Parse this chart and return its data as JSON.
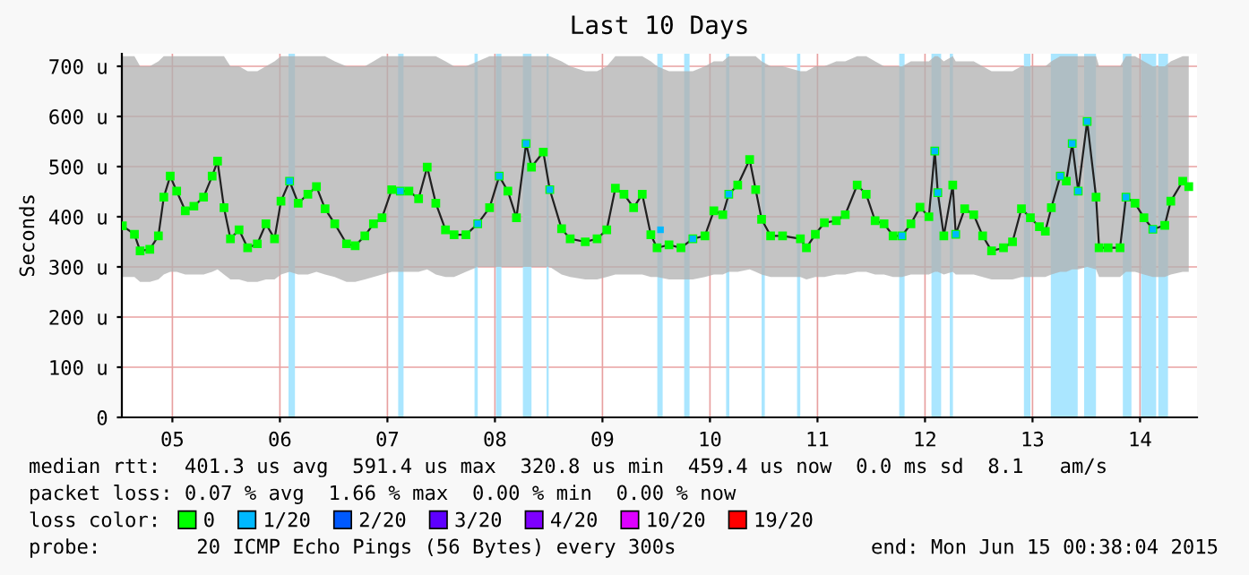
{
  "chart_data": {
    "type": "line",
    "title": "Last 10 Days",
    "ylabel": "Seconds",
    "xlim": [
      4.53,
      14.53
    ],
    "ylim": [
      0,
      725
    ],
    "xticks": [
      {
        "value": 5,
        "label": "05"
      },
      {
        "value": 6,
        "label": "06"
      },
      {
        "value": 7,
        "label": "07"
      },
      {
        "value": 8,
        "label": "08"
      },
      {
        "value": 9,
        "label": "09"
      },
      {
        "value": 10,
        "label": "10"
      },
      {
        "value": 11,
        "label": "11"
      },
      {
        "value": 12,
        "label": "12"
      },
      {
        "value": 13,
        "label": "13"
      },
      {
        "value": 14,
        "label": "14"
      }
    ],
    "yticks": [
      0,
      {
        "value": 100,
        "label": "100 u"
      },
      {
        "value": 200,
        "label": "200 u"
      },
      {
        "value": 300,
        "label": "300 u"
      },
      {
        "value": 400,
        "label": "400 u"
      },
      {
        "value": 500,
        "label": "500 u"
      },
      {
        "value": 600,
        "label": "600 u"
      },
      {
        "value": 700,
        "label": "700 u"
      }
    ],
    "grid": true,
    "legend": "bottom",
    "marker": "square",
    "line_style": "solid",
    "series": [
      {
        "name": "0",
        "color": "#00ff00",
        "x": [
          4.535,
          4.647,
          4.7,
          4.79,
          4.87,
          4.92,
          4.98,
          5.04,
          5.12,
          5.2,
          5.29,
          5.37,
          5.42,
          5.48,
          5.54,
          5.62,
          5.7,
          5.79,
          5.87,
          5.95,
          6.01,
          6.09,
          6.17,
          6.26,
          6.34,
          6.42,
          6.51,
          6.62,
          6.7,
          6.79,
          6.87,
          6.95,
          7.04,
          7.12,
          7.2,
          7.29,
          7.37,
          7.45,
          7.54,
          7.62,
          7.73,
          7.84,
          7.95,
          8.04,
          8.12,
          8.2,
          8.29,
          8.34,
          8.45,
          8.51,
          8.62,
          8.7,
          8.84,
          8.95,
          9.04,
          9.12,
          9.2,
          9.29,
          9.37,
          9.45,
          9.508,
          9.619,
          9.73,
          9.841,
          9.953,
          10.036,
          10.119,
          10.175,
          10.258,
          10.369,
          10.425,
          10.48,
          10.564,
          10.675,
          10.841,
          10.897,
          10.98,
          11.064,
          11.175,
          11.258,
          11.369,
          11.453,
          11.536,
          11.619,
          11.703,
          11.786,
          11.869,
          11.953,
          12.036,
          12.091,
          12.119,
          12.175,
          12.258,
          12.286,
          12.369,
          12.453,
          12.536,
          12.619,
          12.73,
          12.814,
          12.897,
          12.98,
          13.064,
          13.119,
          13.175,
          13.258,
          13.314,
          13.369,
          13.425,
          13.508,
          13.591,
          13.619,
          13.703,
          13.814,
          13.869,
          13.953,
          14.036,
          14.119,
          14.23,
          14.286,
          14.397,
          14.453
        ],
        "values": [
          382,
          365,
          332,
          335,
          362,
          439,
          481,
          451,
          412,
          421,
          439,
          481,
          511,
          418,
          356,
          374,
          338,
          346,
          386,
          356,
          431,
          471,
          427,
          445,
          460,
          416,
          386,
          346,
          342,
          362,
          386,
          398,
          454,
          451,
          451,
          436,
          499,
          427,
          374,
          364,
          364,
          386,
          418,
          481,
          451,
          398,
          546,
          499,
          529,
          454,
          376,
          356,
          350,
          356,
          374,
          457,
          445,
          418,
          445,
          364,
          338,
          344,
          338,
          356,
          362,
          412,
          404,
          445,
          463,
          514,
          454,
          395,
          362,
          362,
          356,
          338,
          365,
          388,
          392,
          404,
          463,
          445,
          392,
          386,
          362,
          362,
          386,
          419,
          400,
          531,
          448,
          362,
          463,
          365,
          416,
          404,
          362,
          332,
          338,
          350,
          416,
          398,
          380,
          371,
          418,
          481,
          471,
          546,
          451,
          590,
          439,
          338,
          338,
          338,
          439,
          427,
          398,
          375,
          383,
          431,
          471,
          460
        ],
        "lower": [
          280,
          280,
          270,
          270,
          275,
          285,
          290,
          290,
          285,
          285,
          285,
          290,
          295,
          285,
          275,
          275,
          270,
          270,
          275,
          275,
          285,
          290,
          285,
          285,
          290,
          285,
          280,
          270,
          270,
          275,
          280,
          285,
          290,
          290,
          290,
          290,
          295,
          285,
          280,
          280,
          290,
          300,
          300,
          300,
          300,
          300,
          300,
          300,
          300,
          300,
          285,
          280,
          275,
          275,
          280,
          285,
          285,
          285,
          285,
          280,
          280,
          275,
          275,
          275,
          280,
          285,
          285,
          290,
          290,
          295,
          290,
          285,
          280,
          280,
          280,
          275,
          280,
          280,
          285,
          285,
          290,
          290,
          285,
          285,
          280,
          280,
          285,
          285,
          285,
          290,
          290,
          285,
          290,
          285,
          285,
          285,
          280,
          275,
          275,
          275,
          280,
          280,
          280,
          280,
          285,
          290,
          290,
          295,
          295,
          300,
          295,
          280,
          280,
          280,
          290,
          290,
          285,
          280,
          280,
          285,
          290,
          290
        ],
        "upper": [
          720,
          720,
          700,
          700,
          710,
          720,
          720,
          720,
          720,
          720,
          720,
          720,
          720,
          720,
          700,
          700,
          690,
          690,
          700,
          710,
          720,
          720,
          720,
          720,
          720,
          720,
          710,
          700,
          700,
          700,
          710,
          720,
          720,
          720,
          720,
          720,
          720,
          720,
          710,
          700,
          700,
          710,
          720,
          720,
          720,
          720,
          720,
          720,
          720,
          720,
          710,
          700,
          690,
          690,
          700,
          720,
          720,
          720,
          720,
          710,
          700,
          690,
          690,
          690,
          700,
          710,
          710,
          720,
          720,
          720,
          720,
          710,
          700,
          700,
          690,
          690,
          700,
          700,
          710,
          710,
          720,
          720,
          710,
          700,
          700,
          700,
          710,
          710,
          710,
          720,
          720,
          710,
          720,
          710,
          710,
          710,
          700,
          690,
          690,
          690,
          700,
          700,
          700,
          700,
          710,
          720,
          720,
          720,
          720,
          720,
          720,
          700,
          700,
          700,
          720,
          720,
          710,
          700,
          700,
          710,
          720,
          720
        ]
      },
      {
        "name": "1/20",
        "color": "#00b8ff",
        "type": "scatter",
        "x": [
          6.09,
          7.12,
          7.84,
          8.04,
          8.29,
          8.51,
          9.54,
          9.841,
          10.175,
          11.786,
          12.091,
          12.119,
          12.286,
          13.258,
          13.369,
          13.425,
          13.508,
          13.869,
          14.119
        ],
        "values": [
          471,
          451,
          386,
          481,
          546,
          454,
          374,
          356,
          445,
          362,
          531,
          448,
          365,
          481,
          546,
          451,
          590,
          439,
          375
        ]
      },
      {
        "name": "2/20",
        "color": "#0059ff",
        "type": "scatter"
      },
      {
        "name": "3/20",
        "color": "#5e00ff",
        "type": "scatter"
      },
      {
        "name": "4/20",
        "color": "#7e00ff",
        "type": "scatter"
      },
      {
        "name": "10/20",
        "color": "#dd00ff",
        "type": "scatter"
      },
      {
        "name": "19/20",
        "color": "#ff0000",
        "type": "scatter"
      }
    ],
    "bands": [
      {
        "axis": "x",
        "from": 6.08,
        "to": 6.14,
        "color": "#aae6ff"
      },
      {
        "axis": "x",
        "from": 7.1,
        "to": 7.15,
        "color": "#aae6ff"
      },
      {
        "axis": "x",
        "from": 7.81,
        "to": 7.84,
        "color": "#aae6ff"
      },
      {
        "axis": "x",
        "from": 8.01,
        "to": 8.06,
        "color": "#aae6ff"
      },
      {
        "axis": "x",
        "from": 8.26,
        "to": 8.34,
        "color": "#aae6ff"
      },
      {
        "axis": "x",
        "from": 8.48,
        "to": 8.5,
        "color": "#aae6ff"
      },
      {
        "axis": "x",
        "from": 9.51,
        "to": 9.56,
        "color": "#aae6ff"
      },
      {
        "axis": "x",
        "from": 9.76,
        "to": 9.81,
        "color": "#aae6ff"
      },
      {
        "axis": "x",
        "from": 10.15,
        "to": 10.18,
        "color": "#aae6ff"
      },
      {
        "axis": "x",
        "from": 10.48,
        "to": 10.51,
        "color": "#aae6ff"
      },
      {
        "axis": "x",
        "from": 10.81,
        "to": 10.84,
        "color": "#aae6ff"
      },
      {
        "axis": "x",
        "from": 11.76,
        "to": 11.81,
        "color": "#aae6ff"
      },
      {
        "axis": "x",
        "from": 12.06,
        "to": 12.15,
        "color": "#aae6ff"
      },
      {
        "axis": "x",
        "from": 12.23,
        "to": 12.26,
        "color": "#aae6ff"
      },
      {
        "axis": "x",
        "from": 12.92,
        "to": 12.98,
        "color": "#aae6ff"
      },
      {
        "axis": "x",
        "from": 13.17,
        "to": 13.42,
        "color": "#aae6ff"
      },
      {
        "axis": "x",
        "from": 13.48,
        "to": 13.59,
        "color": "#aae6ff"
      },
      {
        "axis": "x",
        "from": 13.84,
        "to": 13.92,
        "color": "#aae6ff"
      },
      {
        "axis": "x",
        "from": 14.01,
        "to": 14.15,
        "color": "#aae6ff"
      },
      {
        "axis": "x",
        "from": 14.17,
        "to": 14.26,
        "color": "#aae6ff"
      }
    ],
    "annotations": [
      "median rtt:  401.3 us avg  591.4 us max  320.8 us min  459.4 us now  0.0 ms sd  8.1   am/s",
      "packet loss: 0.07 % avg  1.66 % max  0.00 % min  0.00 % now",
      "loss color:",
      "probe:        20 ICMP Echo Pings (56 Bytes) every 300s",
      "end: Mon Jun 15 00:38:04 2015"
    ]
  }
}
